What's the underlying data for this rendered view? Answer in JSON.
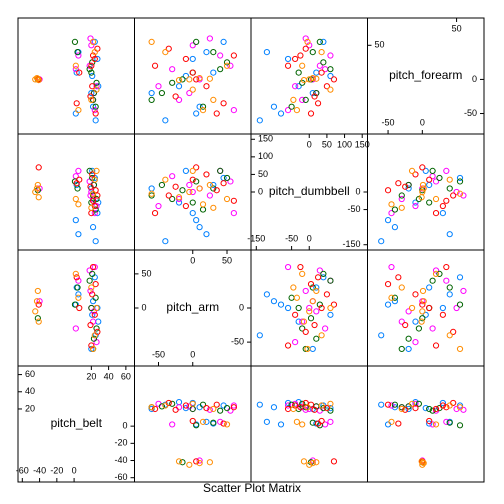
{
  "chart_data": {
    "type": "splom",
    "title": "Scatter Plot Matrix",
    "variables": [
      {
        "name": "pitch_belt",
        "lim": [
          -65,
          70
        ],
        "ticks": [
          -60,
          -40,
          -20,
          0,
          20,
          40,
          60
        ]
      },
      {
        "name": "pitch_arm",
        "lim": [
          -85,
          85
        ],
        "ticks": [
          -50,
          0,
          50
        ]
      },
      {
        "name": "pitch_dumbbell",
        "lim": [
          -165,
          165
        ],
        "ticks": [
          -150,
          -50,
          0,
          50,
          100,
          150
        ]
      },
      {
        "name": "pitch_forearm",
        "lim": [
          -80,
          90
        ],
        "ticks": [
          -50,
          0,
          50
        ]
      }
    ],
    "series": [
      {
        "color": "#0080ff",
        "values": [
          [
            22,
            25,
            3,
            27,
            20,
            5,
            24,
            28,
            2,
            21
          ],
          [
            10,
            -40,
            30,
            0,
            -60,
            20,
            45,
            -20,
            5,
            -10
          ],
          [
            -100,
            -140,
            20,
            -60,
            10,
            -120,
            40,
            -30,
            -80,
            60
          ],
          [
            -40,
            -60,
            10,
            30,
            -20,
            40,
            55,
            -10,
            -50,
            5
          ]
        ]
      },
      {
        "color": "#ff00ff",
        "values": [
          [
            18,
            22,
            5,
            26,
            20,
            -40,
            24,
            2,
            19,
            23
          ],
          [
            55,
            -20,
            40,
            -50,
            0,
            10,
            60,
            -30,
            25,
            -5
          ],
          [
            30,
            -20,
            60,
            -40,
            0,
            10,
            -60,
            45,
            -10,
            20
          ],
          [
            20,
            -30,
            35,
            -10,
            50,
            0,
            -45,
            15,
            60,
            -20
          ]
        ]
      },
      {
        "color": "#006400",
        "values": [
          [
            20,
            23,
            4,
            25,
            -42,
            21,
            26,
            1,
            22,
            18
          ],
          [
            0,
            -45,
            30,
            15,
            -15,
            50,
            -30,
            5,
            -60,
            40
          ],
          [
            -30,
            20,
            10,
            -50,
            5,
            40,
            -20,
            30,
            -10,
            60
          ],
          [
            10,
            -20,
            40,
            -40,
            0,
            25,
            -5,
            55,
            -30,
            15
          ]
        ]
      },
      {
        "color": "#ff0000",
        "values": [
          [
            21,
            24,
            3,
            27,
            -41,
            20,
            25,
            6,
            22,
            19
          ],
          [
            20,
            -10,
            45,
            -35,
            5,
            -55,
            35,
            0,
            60,
            -25
          ],
          [
            50,
            -40,
            25,
            -10,
            70,
            -60,
            5,
            35,
            -25,
            15
          ],
          [
            -10,
            30,
            -35,
            45,
            0,
            20,
            -50,
            10,
            35,
            -25
          ]
        ]
      },
      {
        "color": "#ff8c00",
        "values": [
          [
            -45,
            -43,
            -41,
            20,
            24,
            2,
            26,
            22,
            -42,
            5
          ],
          [
            -5,
            10,
            -20,
            30,
            -40,
            50,
            0,
            -60,
            25,
            15
          ],
          [
            0,
            10,
            -15,
            -45,
            35,
            -20,
            60,
            -5,
            20,
            -35
          ],
          [
            0,
            2,
            -1,
            -30,
            40,
            20,
            -15,
            55,
            1,
            -45
          ]
        ]
      }
    ]
  }
}
